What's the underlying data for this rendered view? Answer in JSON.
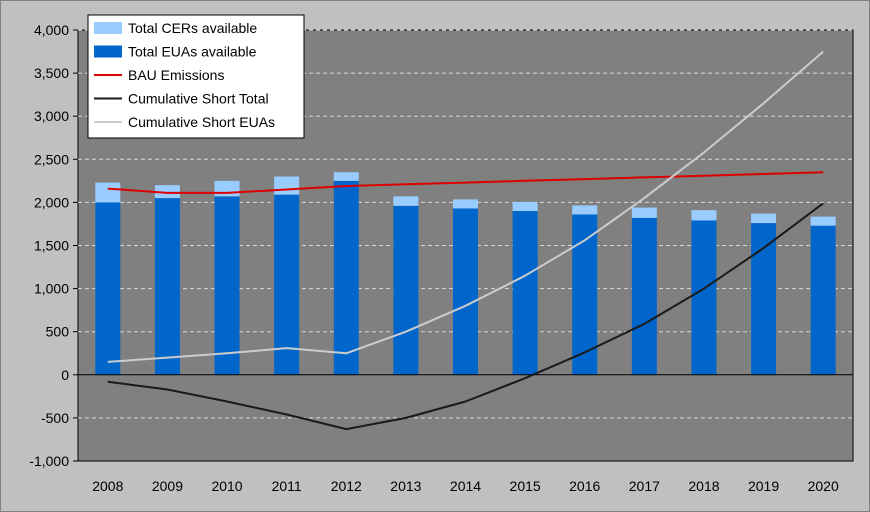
{
  "chart_data": {
    "type": "bar",
    "categories": [
      "2008",
      "2009",
      "2010",
      "2011",
      "2012",
      "2013",
      "2014",
      "2015",
      "2016",
      "2017",
      "2018",
      "2019",
      "2020"
    ],
    "stacked_bars": [
      {
        "name": "Total EUAs available",
        "color": "#0066cc",
        "values": [
          2000,
          2050,
          2070,
          2090,
          2250,
          1960,
          1930,
          1900,
          1860,
          1820,
          1790,
          1760,
          1730
        ]
      },
      {
        "name": "Total CERs available",
        "color": "#99ccff",
        "values": [
          230,
          150,
          180,
          210,
          100,
          110,
          105,
          105,
          105,
          120,
          120,
          110,
          105
        ]
      }
    ],
    "lines": [
      {
        "name": "BAU Emissions",
        "color": "#dd0000",
        "values": [
          2160,
          2110,
          2110,
          2150,
          2190,
          2210,
          2230,
          2250,
          2270,
          2290,
          2310,
          2330,
          2350
        ]
      },
      {
        "name": "Cumulative Short Total",
        "color": "#1a1a1a",
        "values": [
          -80,
          -170,
          -310,
          -460,
          -630,
          -500,
          -310,
          -40,
          260,
          590,
          1000,
          1470,
          1990
        ]
      },
      {
        "name": "Cumulative Short EUAs",
        "color": "#cccccc",
        "values": [
          150,
          200,
          250,
          310,
          250,
          500,
          800,
          1150,
          1560,
          2050,
          2580,
          3150,
          3750
        ]
      }
    ],
    "legend": [
      "Total CERs available",
      "Total EUAs available",
      "BAU Emissions",
      "Cumulative Short Total",
      "Cumulative Short EUAs"
    ],
    "legend_position": "top-left",
    "yticks": [
      "-1,000",
      "-500",
      "0",
      "500",
      "1,000",
      "1,500",
      "2,000",
      "2,500",
      "3,000",
      "3,500",
      "4,000"
    ],
    "ylim": [
      -1000,
      4000
    ],
    "grid": true,
    "plot_background": "#808080",
    "title": "",
    "xlabel": "",
    "ylabel": ""
  }
}
